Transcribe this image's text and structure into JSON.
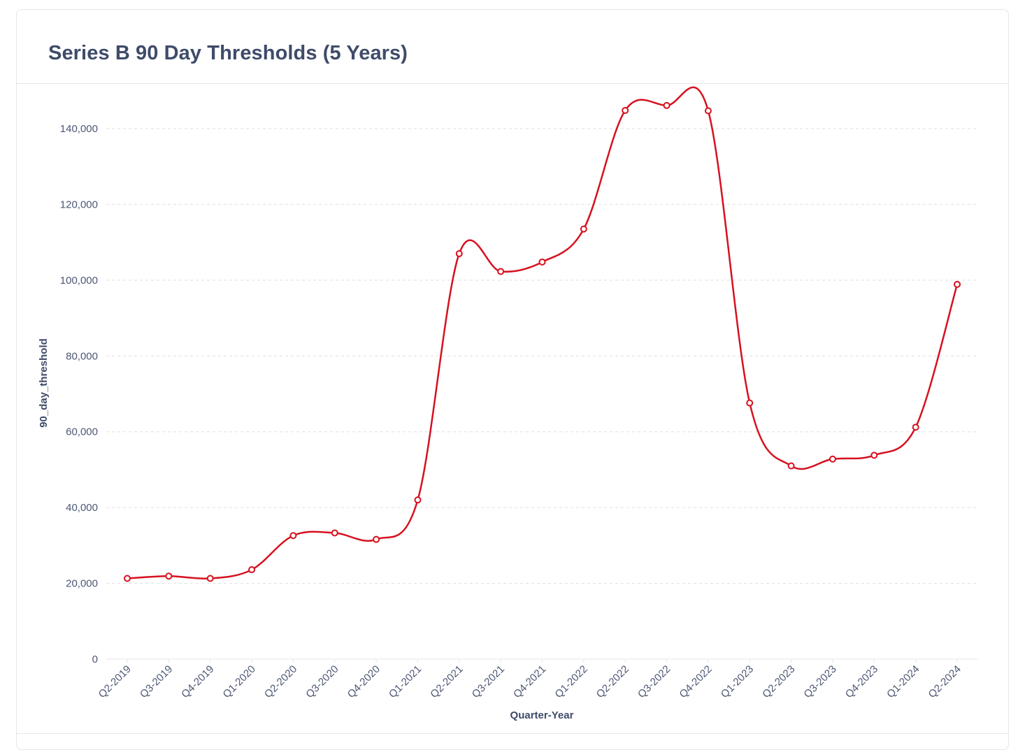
{
  "card": {
    "title": "Series B 90 Day Thresholds (5 Years)"
  },
  "colors": {
    "line": "#d6111f",
    "grid": "#dcdfe4",
    "text": "#4c5773",
    "title": "#3f4b69"
  },
  "chart_data": {
    "type": "line",
    "title": "Series B 90 Day Thresholds (5 Years)",
    "xlabel": "Quarter-Year",
    "ylabel": "90_day_threshold",
    "categories": [
      "Q2-2019",
      "Q3-2019",
      "Q4-2019",
      "Q1-2020",
      "Q2-2020",
      "Q3-2020",
      "Q4-2020",
      "Q1-2021",
      "Q2-2021",
      "Q3-2021",
      "Q4-2021",
      "Q1-2022",
      "Q2-2022",
      "Q3-2022",
      "Q4-2022",
      "Q1-2023",
      "Q2-2023",
      "Q3-2023",
      "Q4-2023",
      "Q1-2024",
      "Q2-2024"
    ],
    "series": [
      {
        "values": [
          21300,
          21900,
          21300,
          23600,
          32600,
          33300,
          31600,
          42000,
          107000,
          102300,
          104800,
          113500,
          144800,
          146100,
          144700,
          67600,
          51000,
          52800,
          53800,
          61200,
          98900
        ]
      }
    ],
    "ylim": [
      0,
      150000
    ],
    "yticks": [
      0,
      20000,
      40000,
      60000,
      80000,
      100000,
      120000,
      140000
    ],
    "ytick_labels": [
      "0",
      "20,000",
      "40,000",
      "60,000",
      "80,000",
      "100,000",
      "120,000",
      "140,000"
    ],
    "grid": true,
    "smooth": true,
    "markers": "hollow-circle"
  }
}
